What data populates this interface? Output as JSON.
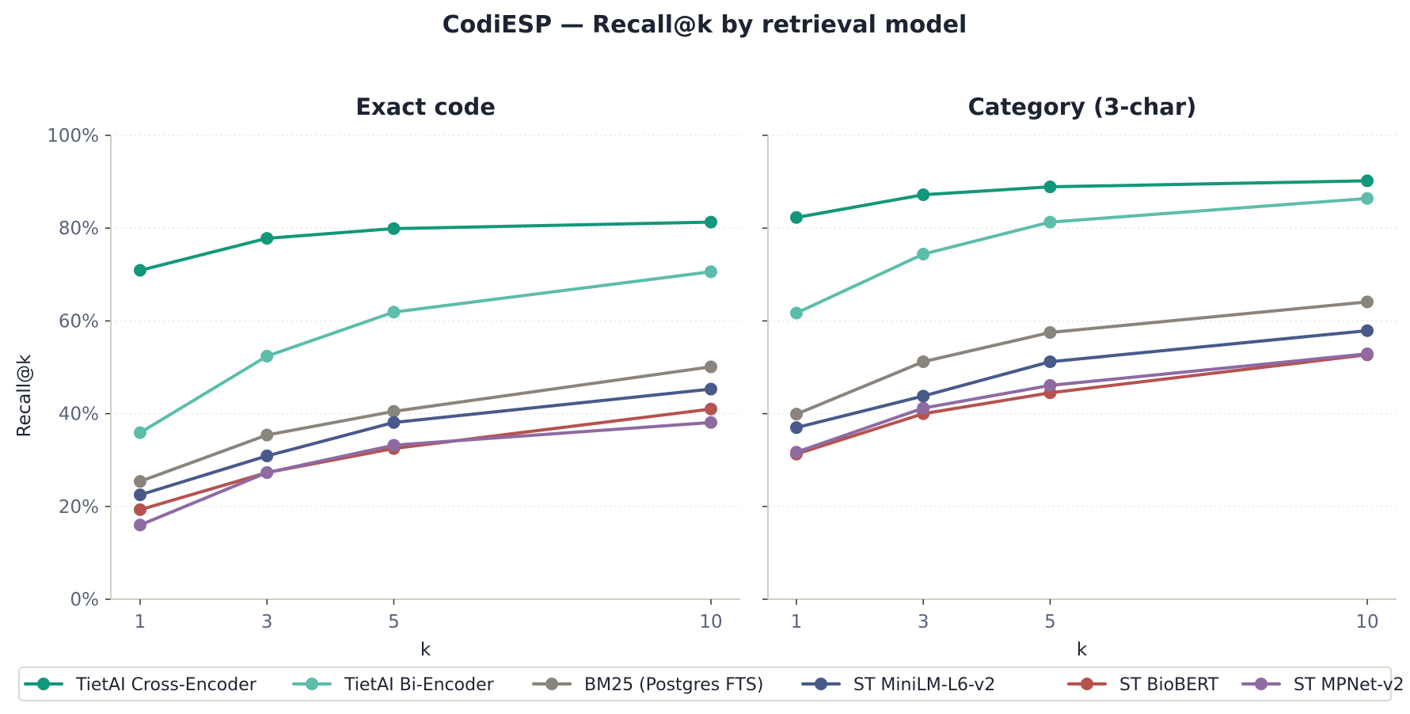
{
  "title": "CodiESP — Recall@k by retrieval model",
  "chart_data": {
    "type": "line",
    "x": [
      1,
      3,
      5,
      10
    ],
    "xlabel": "k",
    "ylabel": "Recall@k",
    "ylim": [
      0,
      100
    ],
    "yticks": [
      "0%",
      "20%",
      "40%",
      "60%",
      "80%",
      "100%"
    ],
    "yticks_values": [
      0,
      20,
      40,
      60,
      80,
      100
    ],
    "xticks": [
      "1",
      "3",
      "5",
      "10"
    ],
    "grid": "horizontal-dotted",
    "legend_placement": "bottom",
    "panels": [
      {
        "title": "Exact code",
        "series": [
          {
            "name": "TietAI Cross-Encoder",
            "color": "#12977a",
            "values": [
              70.9,
              77.8,
              79.9,
              81.3
            ]
          },
          {
            "name": "TietAI Bi-Encoder",
            "color": "#5cbdab",
            "values": [
              35.9,
              52.4,
              61.9,
              70.6
            ]
          },
          {
            "name": "BM25 (Postgres FTS)",
            "color": "#8b847c",
            "values": [
              25.4,
              35.4,
              40.5,
              50.1
            ]
          },
          {
            "name": "ST MiniLM-L6-v2",
            "color": "#485a8a",
            "values": [
              22.5,
              30.9,
              38.1,
              45.3
            ]
          },
          {
            "name": "ST BioBERT",
            "color": "#b5534f",
            "values": [
              19.3,
              27.3,
              32.5,
              41.0
            ]
          },
          {
            "name": "ST MPNet-v2",
            "color": "#8e6aa3",
            "values": [
              16.0,
              27.3,
              33.2,
              38.1
            ]
          }
        ]
      },
      {
        "title": "Category (3-char)",
        "series": [
          {
            "name": "TietAI Cross-Encoder",
            "color": "#12977a",
            "values": [
              82.3,
              87.2,
              88.9,
              90.2
            ]
          },
          {
            "name": "TietAI Bi-Encoder",
            "color": "#5cbdab",
            "values": [
              61.7,
              74.4,
              81.3,
              86.4
            ]
          },
          {
            "name": "BM25 (Postgres FTS)",
            "color": "#8b847c",
            "values": [
              39.9,
              51.2,
              57.5,
              64.1
            ]
          },
          {
            "name": "ST MiniLM-L6-v2",
            "color": "#485a8a",
            "values": [
              37.0,
              43.8,
              51.2,
              57.9
            ]
          },
          {
            "name": "ST BioBERT",
            "color": "#b5534f",
            "values": [
              31.3,
              40.0,
              44.5,
              52.7
            ]
          },
          {
            "name": "ST MPNet-v2",
            "color": "#8e6aa3",
            "values": [
              31.7,
              41.2,
              46.1,
              52.9
            ]
          }
        ]
      }
    ],
    "legend": [
      {
        "name": "TietAI Cross-Encoder",
        "color": "#12977a"
      },
      {
        "name": "TietAI Bi-Encoder",
        "color": "#5cbdab"
      },
      {
        "name": "BM25 (Postgres FTS)",
        "color": "#8b847c"
      },
      {
        "name": "ST MiniLM-L6-v2",
        "color": "#485a8a"
      },
      {
        "name": "ST BioBERT",
        "color": "#b5534f"
      },
      {
        "name": "ST MPNet-v2",
        "color": "#8e6aa3"
      }
    ]
  }
}
